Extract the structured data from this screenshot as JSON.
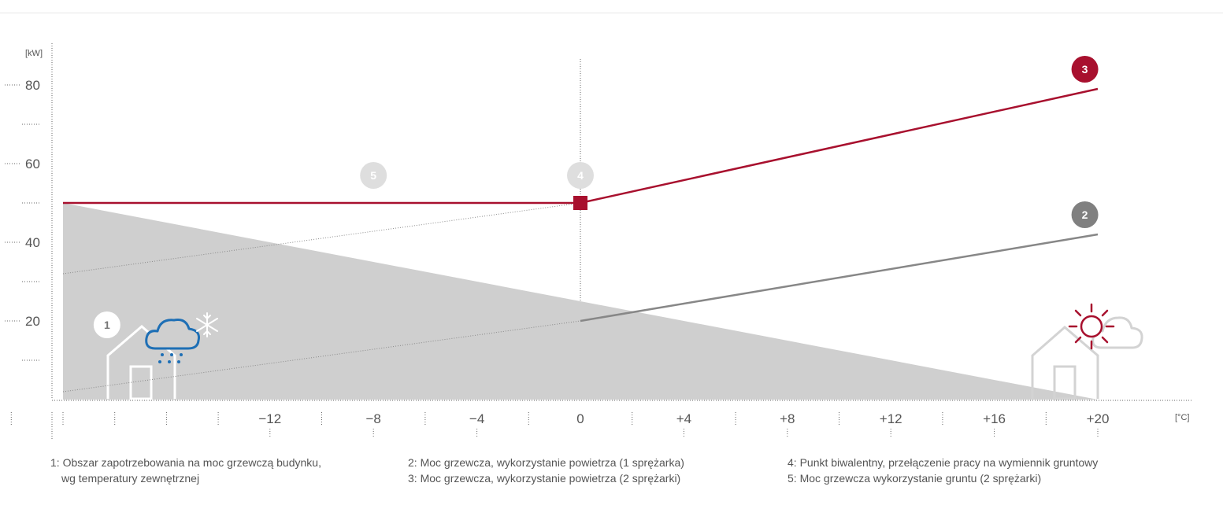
{
  "chart_data": {
    "type": "line",
    "title": "",
    "xlabel": "",
    "ylabel": "",
    "x_unit": "[°C]",
    "y_unit": "[kW]",
    "xlim": [
      -20,
      20
    ],
    "ylim": [
      0,
      88
    ],
    "x_ticks": [
      -12,
      -8,
      -4,
      0,
      4,
      8,
      12,
      16,
      20
    ],
    "x_tick_labels": [
      "−12",
      "−8",
      "−4",
      "0",
      "+4",
      "+8",
      "+12",
      "+16",
      "+20"
    ],
    "y_ticks": [
      20,
      40,
      60,
      80
    ],
    "y_tick_labels": [
      "20",
      "40",
      "60",
      "80"
    ],
    "series": [
      {
        "id": "1",
        "kind": "area",
        "x": [
          -20,
          20
        ],
        "y": [
          50,
          0
        ],
        "color": "#cfcfcf"
      },
      {
        "id": "2",
        "kind": "line",
        "x": [
          0,
          20
        ],
        "y": [
          20,
          42
        ],
        "color": "#878787"
      },
      {
        "id": "2-ext",
        "kind": "dotted",
        "x": [
          -20,
          0
        ],
        "y": [
          2,
          20
        ],
        "color": "#8a8a8a"
      },
      {
        "id": "3",
        "kind": "line",
        "x": [
          -20,
          0,
          20
        ],
        "y": [
          50,
          50,
          79
        ],
        "color": "#a8102e"
      },
      {
        "id": "3-ext",
        "kind": "dotted",
        "x": [
          -20,
          0
        ],
        "y": [
          32,
          50
        ],
        "color": "#8a8a8a"
      }
    ],
    "bivalent_point": {
      "x": 0,
      "y": 50,
      "color": "#a8102e"
    },
    "badges": [
      {
        "label": "1",
        "x": -18.3,
        "y": 19,
        "fill": "#ffffff",
        "text_color": "#777777"
      },
      {
        "label": "2",
        "x": 19.5,
        "y": 47,
        "fill": "#808080",
        "text_color": "#ffffff"
      },
      {
        "label": "3",
        "x": 19.5,
        "y": 84,
        "fill": "#a8102e",
        "text_color": "#ffffff"
      },
      {
        "label": "4",
        "x": 0,
        "y": 57,
        "fill": "#dedede",
        "text_color": "#ffffff"
      },
      {
        "label": "5",
        "x": -8,
        "y": 57,
        "fill": "#dedede",
        "text_color": "#ffffff"
      }
    ]
  },
  "legend": {
    "col1": [
      "1: Obszar zapotrzebowania na moc grzewczą budynku,",
      "wg temperatury zewnętrznej"
    ],
    "col2": [
      "2: Moc grzewcza, wykorzystanie powietrza (1 sprężarka)",
      "3: Moc grzewcza, wykorzystanie powietrza (2 sprężarki)"
    ],
    "col3": [
      "4: Punkt biwalentny, przełączenie pracy na wymiennik gruntowy",
      "5: Moc grzewcza wykorzystanie gruntu (2 sprężarki)"
    ]
  },
  "colors": {
    "accent_red": "#a8102e",
    "grey_line": "#878787",
    "area": "#cfcfcf",
    "cloud_blue": "#1e6fb5"
  },
  "icons": [
    "house-cold-icon",
    "rain-cloud-icon",
    "snowflake-icon",
    "house-warm-icon",
    "sun-icon",
    "cloud-outline-icon"
  ]
}
